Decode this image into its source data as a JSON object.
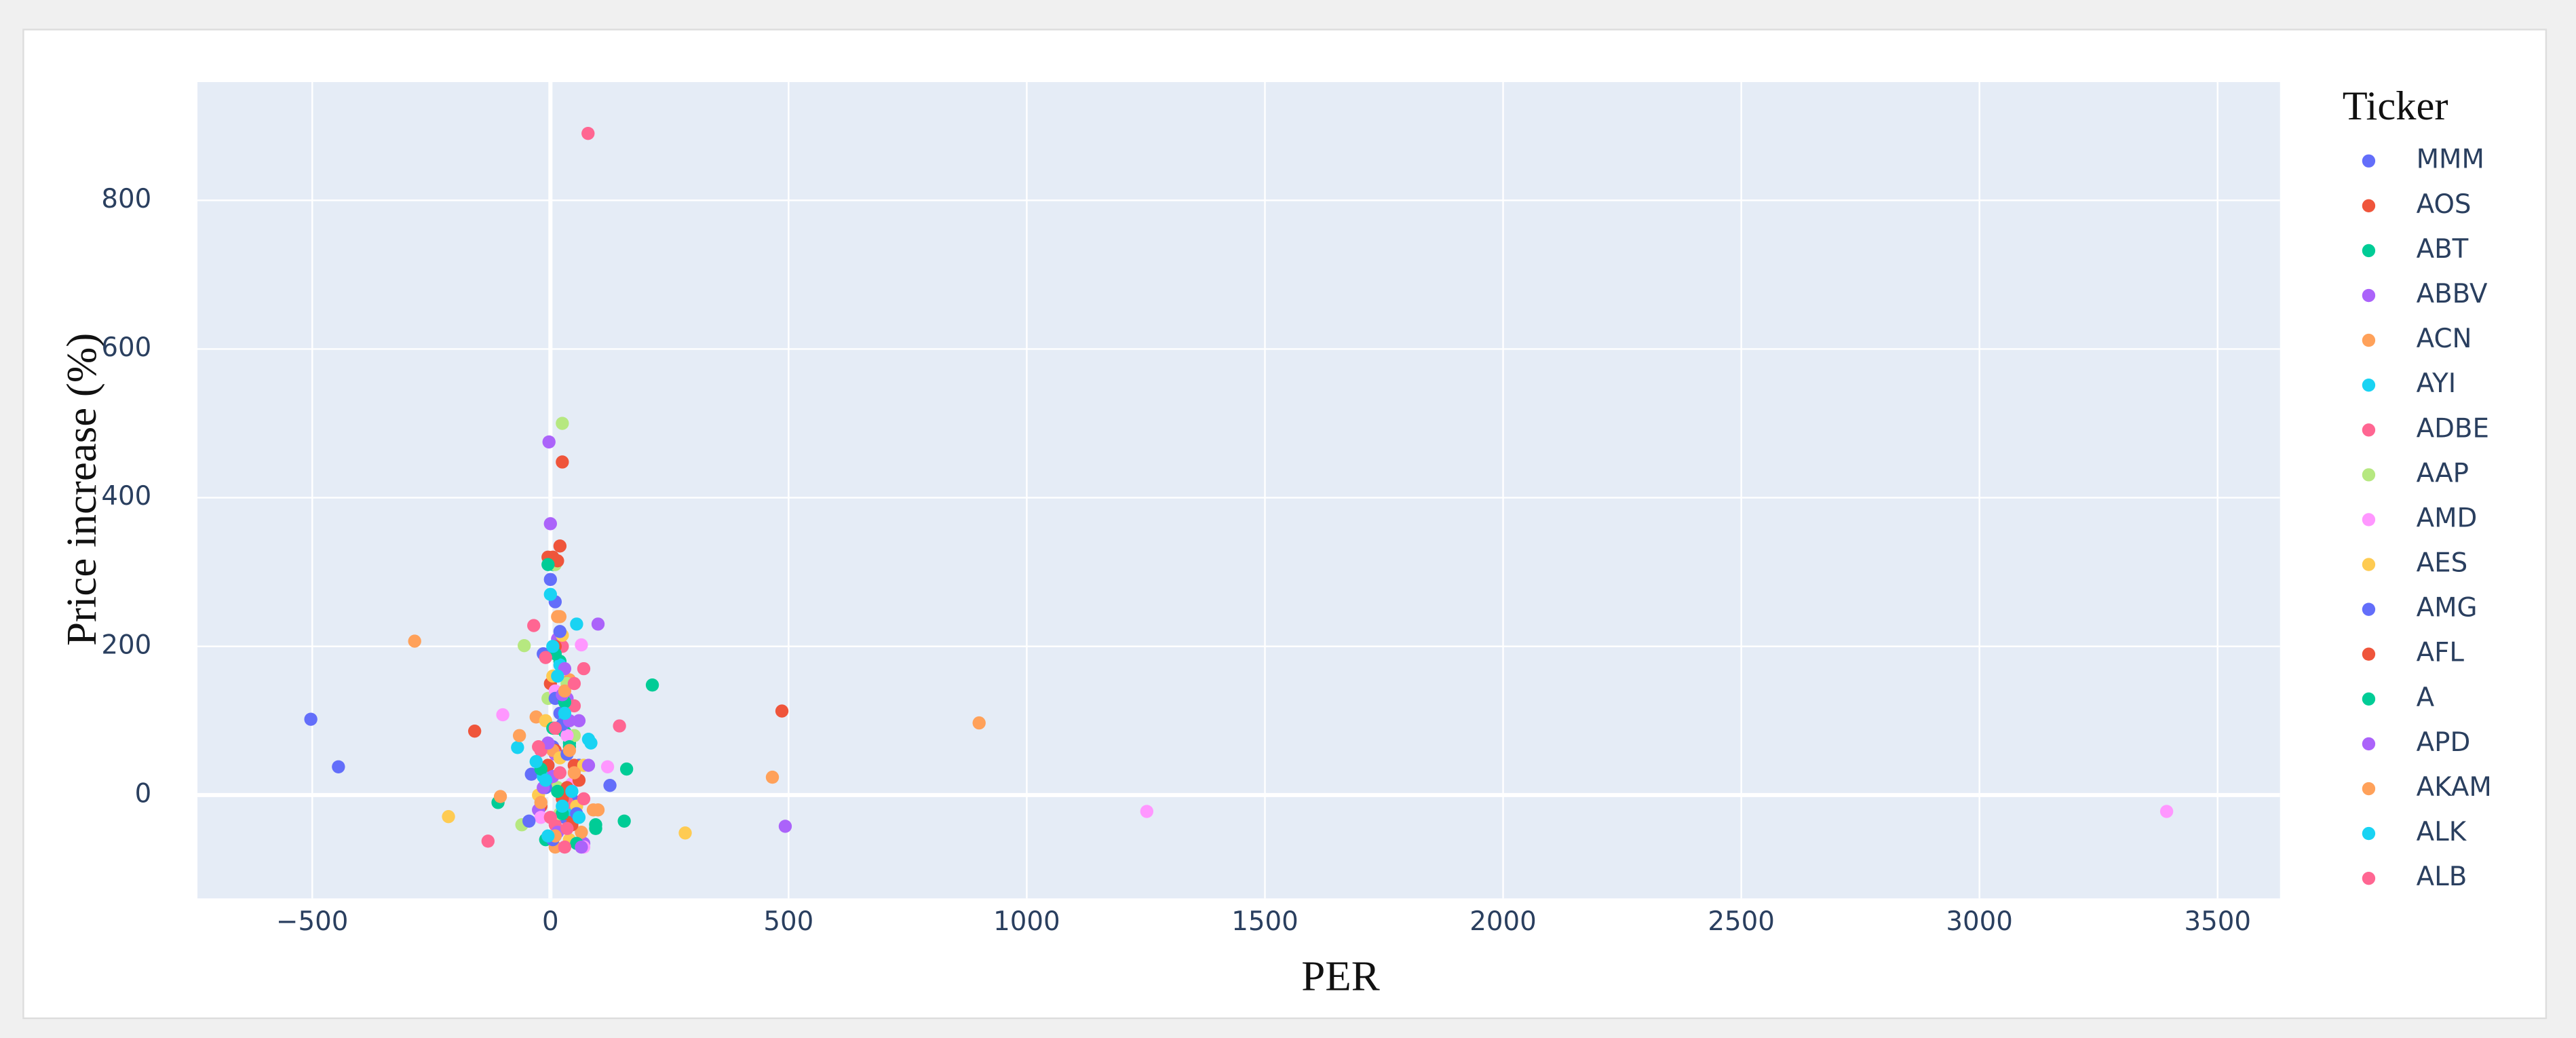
{
  "chart_data": {
    "type": "scatter",
    "x_label": "PER",
    "y_label": "Price increase (%)",
    "legend_title": "Ticker",
    "xlim": [
      -741,
      3631
    ],
    "ylim": [
      -139,
      959
    ],
    "xticks": [
      {
        "value": -500,
        "label": "−500"
      },
      0,
      500,
      1000,
      1500,
      2000,
      2500,
      3000,
      3500
    ],
    "yticks": [
      0,
      200,
      400,
      600,
      800
    ],
    "grid": true,
    "legend": "right",
    "series": [
      {
        "name": "MMM",
        "color": "#636efa",
        "x": [
          -503,
          125,
          -40,
          10,
          30,
          -15,
          45,
          5,
          20,
          60
        ],
        "values": [
          102,
          13,
          28,
          260,
          -30,
          190,
          -5,
          65,
          110,
          40
        ]
      },
      {
        "name": "AOS",
        "color": "#EF553B",
        "x": [
          25,
          -5,
          20,
          10,
          30,
          -20,
          50,
          0,
          15,
          35
        ],
        "values": [
          448,
          320,
          335,
          60,
          5,
          -15,
          40,
          150,
          90,
          -25
        ]
      },
      {
        "name": "ABT",
        "color": "#00cc96",
        "x": [
          214,
          -110,
          155,
          160,
          5,
          20,
          -10,
          40,
          95,
          30
        ],
        "values": [
          148,
          -10,
          -35,
          35,
          310,
          180,
          -60,
          70,
          -45,
          85
        ]
      },
      {
        "name": "ABBV",
        "color": "#ab63fa",
        "x": [
          -3,
          0,
          100,
          15,
          60,
          -25,
          35,
          70,
          10,
          45
        ],
        "values": [
          475,
          365,
          230,
          210,
          100,
          -20,
          130,
          -65,
          55,
          15
        ]
      },
      {
        "name": "ACN",
        "color": "#FFA15A",
        "x": [
          -285,
          466,
          -30,
          20,
          65,
          5,
          -10,
          40,
          100,
          10
        ],
        "values": [
          207,
          24,
          105,
          240,
          -50,
          60,
          20,
          155,
          -20,
          -70
        ]
      },
      {
        "name": "AYI",
        "color": "#19d3f3",
        "x": [
          -69,
          55,
          0,
          30,
          85,
          -15,
          20,
          45,
          10,
          -5
        ],
        "values": [
          64,
          230,
          270,
          100,
          70,
          25,
          175,
          -20,
          -55,
          40
        ]
      },
      {
        "name": "ADBE",
        "color": "#FF6692",
        "x": [
          79,
          145,
          -35,
          25,
          70,
          10,
          -20,
          50,
          35,
          0
        ],
        "values": [
          890,
          93,
          228,
          200,
          170,
          -40,
          60,
          120,
          -10,
          15
        ]
      },
      {
        "name": "AAP",
        "color": "#B6E880",
        "x": [
          25,
          -55,
          -60,
          10,
          70,
          35,
          -5,
          20,
          50,
          15
        ],
        "values": [
          500,
          201,
          -40,
          310,
          40,
          150,
          130,
          -25,
          80,
          10
        ]
      },
      {
        "name": "AMD",
        "color": "#FF97FF",
        "x": [
          1252,
          3393,
          -100,
          120,
          65,
          35,
          -20,
          10,
          70,
          45
        ],
        "values": [
          -22,
          -22,
          108,
          38,
          202,
          80,
          -30,
          140,
          -70,
          15
        ]
      },
      {
        "name": "AES",
        "color": "#FECB52",
        "x": [
          283,
          -214,
          20,
          70,
          -10,
          40,
          5,
          55,
          25,
          -25
        ],
        "values": [
          -51,
          -29,
          50,
          40,
          100,
          -60,
          160,
          -15,
          215,
          0
        ]
      },
      {
        "name": "AMG",
        "color": "#636efa",
        "x": [
          -445,
          0,
          20,
          -45,
          35,
          10,
          55,
          -10,
          25,
          5
        ],
        "values": [
          38,
          290,
          220,
          -35,
          55,
          130,
          -25,
          10,
          95,
          -60
        ]
      },
      {
        "name": "AFL",
        "color": "#EF553B",
        "x": [
          486,
          -159,
          5,
          15,
          35,
          -5,
          25,
          45,
          10,
          60
        ],
        "values": [
          113,
          86,
          320,
          315,
          10,
          40,
          -5,
          -40,
          200,
          20
        ]
      },
      {
        "name": "A",
        "color": "#00cc96",
        "x": [
          -5,
          10,
          25,
          40,
          -20,
          55,
          30,
          95,
          15,
          5
        ],
        "values": [
          310,
          190,
          -25,
          65,
          35,
          -65,
          125,
          -40,
          5,
          90
        ]
      },
      {
        "name": "APD",
        "color": "#ab63fa",
        "x": [
          493,
          -5,
          25,
          80,
          40,
          15,
          65,
          5,
          -15,
          30
        ],
        "values": [
          -42,
          70,
          135,
          40,
          100,
          -50,
          -70,
          25,
          10,
          170
        ]
      },
      {
        "name": "AKAM",
        "color": "#FFA15A",
        "x": [
          900,
          -65,
          -105,
          15,
          30,
          -20,
          50,
          10,
          90,
          40
        ],
        "values": [
          97,
          80,
          -2,
          240,
          140,
          -10,
          30,
          -55,
          -20,
          60
        ]
      },
      {
        "name": "ALK",
        "color": "#19d3f3",
        "x": [
          -5,
          30,
          60,
          -10,
          15,
          80,
          45,
          5,
          25,
          -30
        ],
        "values": [
          -55,
          110,
          -30,
          20,
          160,
          75,
          5,
          200,
          -15,
          45
        ]
      },
      {
        "name": "ALB",
        "color": "#FF6692",
        "x": [
          -131,
          35,
          -10,
          70,
          20,
          0,
          50,
          10,
          30,
          -25
        ],
        "values": [
          -62,
          -45,
          185,
          -5,
          30,
          -30,
          150,
          90,
          -70,
          65
        ]
      }
    ]
  }
}
